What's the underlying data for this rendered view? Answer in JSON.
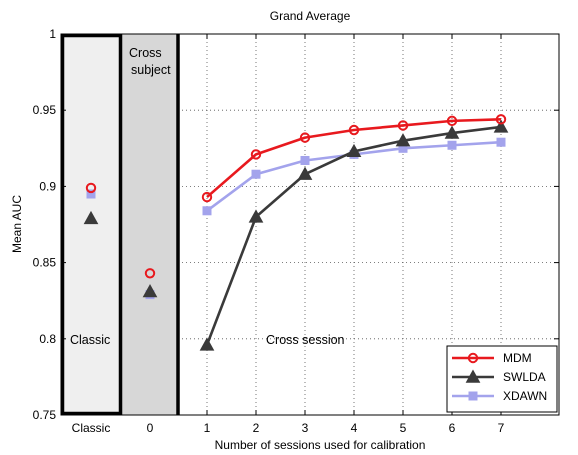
{
  "chart_data": {
    "type": "line",
    "title": "Grand Average",
    "xlabel": "Number of sessions used for calibration",
    "ylabel": "Mean AUC",
    "ylim": [
      0.75,
      1
    ],
    "yticks": [
      "0.75",
      "0.8",
      "0.85",
      "0.9",
      "0.95",
      "1"
    ],
    "x_categories": [
      "Classic",
      "0",
      "1",
      "2",
      "3",
      "4",
      "5",
      "6",
      "7"
    ],
    "grid": "dotted, cross-session region only",
    "panels": {
      "classic": "Classic",
      "cross_subject": "Cross subject",
      "cross_session": "Cross session"
    },
    "legend_position": "bottom-right",
    "series": [
      {
        "name": "MDM",
        "color": "#e8191e",
        "marker": "circle",
        "classic": 0.899,
        "cross_subject": 0.843,
        "x": [
          1,
          2,
          3,
          4,
          5,
          6,
          7
        ],
        "values": [
          0.893,
          0.921,
          0.932,
          0.937,
          0.94,
          0.943,
          0.944
        ]
      },
      {
        "name": "SWLDA",
        "color": "#3a3a3a",
        "marker": "triangle",
        "classic": 0.879,
        "cross_subject": 0.831,
        "x": [
          1,
          2,
          3,
          4,
          5,
          6,
          7
        ],
        "values": [
          0.796,
          0.88,
          0.908,
          0.923,
          0.93,
          0.935,
          0.939
        ]
      },
      {
        "name": "XDAWN",
        "color": "#a3a3ec",
        "marker": "square",
        "classic": 0.895,
        "cross_subject": 0.829,
        "x": [
          1,
          2,
          3,
          4,
          5,
          6,
          7
        ],
        "values": [
          0.884,
          0.908,
          0.917,
          0.921,
          0.925,
          0.927,
          0.929
        ]
      }
    ]
  }
}
